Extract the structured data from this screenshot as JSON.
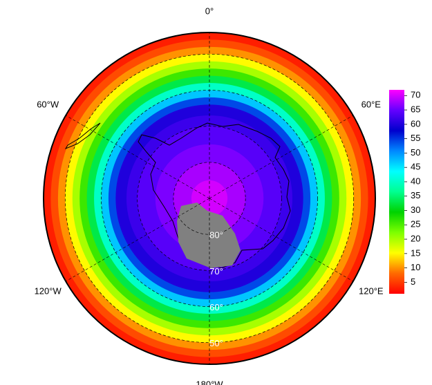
{
  "chart_data": {
    "type": "polar-heatmap",
    "projection": "south-polar-stereographic",
    "lat_limit": -44,
    "meridians": [
      {
        "value": 0,
        "label": "0°"
      },
      {
        "value": 60,
        "label": "60°E"
      },
      {
        "value": 120,
        "label": "120°E"
      },
      {
        "value": 180,
        "label": "180°W"
      },
      {
        "value": -120,
        "label": "120°W"
      },
      {
        "value": -60,
        "label": "60°W"
      }
    ],
    "parallels": [
      {
        "value": -80,
        "label": "80°"
      },
      {
        "value": -70,
        "label": "70°"
      },
      {
        "value": -60,
        "label": "60°"
      },
      {
        "value": -50,
        "label": "50°"
      }
    ],
    "field": {
      "lat": [
        -44,
        -46,
        -48,
        -50,
        -52,
        -54,
        -56,
        -58,
        -60,
        -62,
        -64,
        -67,
        -70,
        -75,
        -80,
        -85
      ],
      "values": [
        3,
        6,
        10,
        15,
        20,
        26,
        33,
        40,
        47,
        54,
        60,
        62,
        64,
        66,
        68,
        70
      ]
    },
    "colorbar": {
      "lim": [
        1,
        72
      ],
      "ticks": [
        5,
        10,
        15,
        20,
        25,
        30,
        35,
        40,
        45,
        50,
        55,
        60,
        65,
        70
      ],
      "colormap": [
        "#ff0000",
        "#ff6a00",
        "#ffff00",
        "#7dff00",
        "#00d200",
        "#00ff90",
        "#00ffff",
        "#0088ff",
        "#0000cd",
        "#6400ff",
        "#ff00ff"
      ]
    }
  }
}
